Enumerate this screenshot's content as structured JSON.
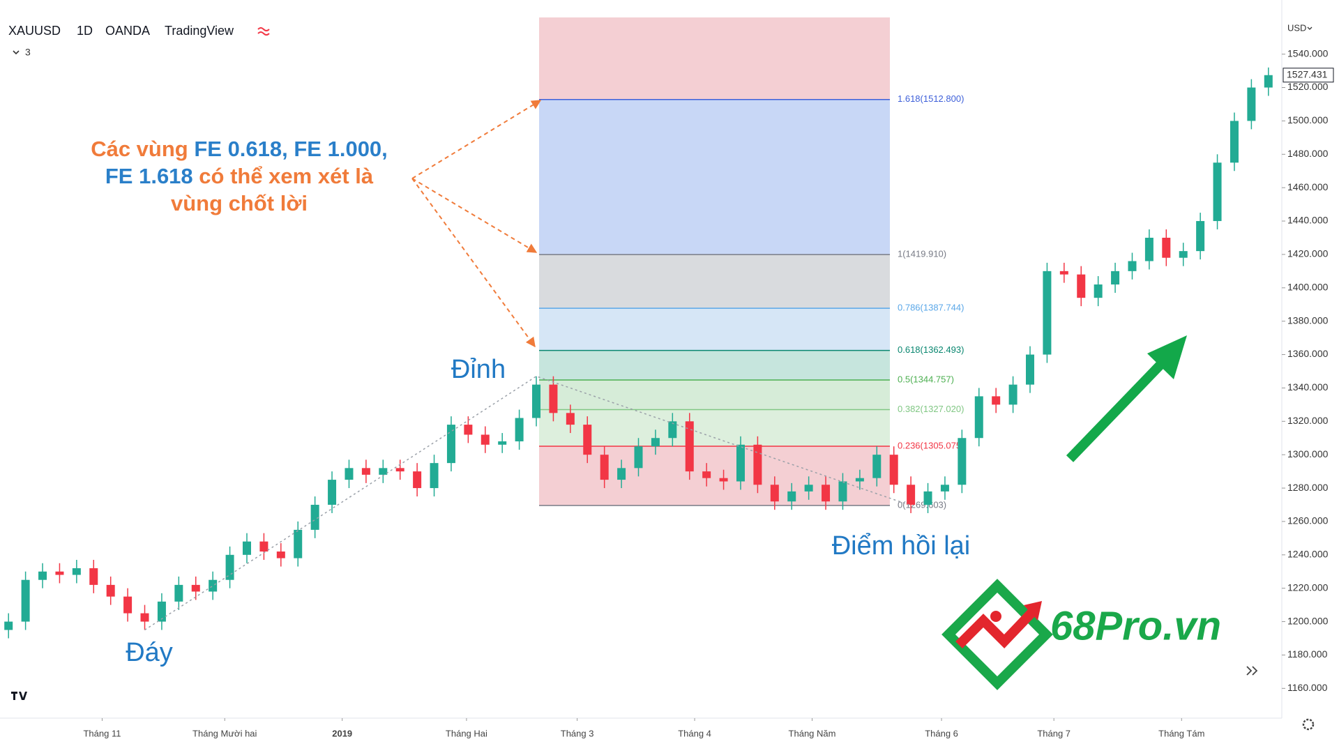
{
  "header": {
    "symbol": "XAUUSD",
    "interval": "1D",
    "exchange": "OANDA",
    "source": "TradingView",
    "indicator_count": "3"
  },
  "chart_data": {
    "type": "candlestick",
    "currency": "USD",
    "open": [
      1195,
      1200,
      1225,
      1230,
      1228,
      1232,
      1222,
      1215,
      1205,
      1200,
      1212,
      1222,
      1218,
      1225,
      1240,
      1248,
      1242,
      1238,
      1255,
      1270,
      1285,
      1292,
      1288,
      1292,
      1290,
      1280,
      1295,
      1318,
      1312,
      1306,
      1308,
      1322,
      1342,
      1325,
      1318,
      1300,
      1285,
      1292,
      1305,
      1310,
      1320,
      1290,
      1286,
      1284,
      1306,
      1282,
      1272,
      1278,
      1282,
      1272,
      1284,
      1286,
      1300,
      1282,
      1270,
      1278,
      1282,
      1310,
      1335,
      1330,
      1342,
      1360,
      1410,
      1408,
      1394,
      1402,
      1410,
      1416,
      1430,
      1418,
      1422,
      1440,
      1475,
      1500,
      1520
    ],
    "high": [
      1205,
      1230,
      1235,
      1235,
      1237,
      1237,
      1227,
      1220,
      1210,
      1217,
      1227,
      1227,
      1230,
      1245,
      1253,
      1253,
      1247,
      1260,
      1275,
      1290,
      1297,
      1297,
      1297,
      1297,
      1295,
      1300,
      1323,
      1323,
      1317,
      1313,
      1327,
      1347,
      1347,
      1330,
      1323,
      1305,
      1297,
      1310,
      1315,
      1325,
      1325,
      1295,
      1291,
      1311,
      1311,
      1287,
      1283,
      1287,
      1287,
      1289,
      1291,
      1305,
      1305,
      1287,
      1283,
      1287,
      1315,
      1340,
      1340,
      1347,
      1365,
      1415,
      1415,
      1413,
      1407,
      1415,
      1421,
      1435,
      1435,
      1427,
      1445,
      1480,
      1505,
      1525,
      1532
    ],
    "low": [
      1190,
      1195,
      1220,
      1223,
      1223,
      1217,
      1210,
      1200,
      1195,
      1195,
      1207,
      1213,
      1213,
      1220,
      1235,
      1237,
      1233,
      1233,
      1250,
      1265,
      1280,
      1283,
      1283,
      1285,
      1275,
      1275,
      1290,
      1307,
      1301,
      1301,
      1303,
      1317,
      1320,
      1313,
      1295,
      1280,
      1280,
      1287,
      1300,
      1305,
      1285,
      1281,
      1279,
      1279,
      1277,
      1267,
      1267,
      1273,
      1267,
      1267,
      1279,
      1281,
      1277,
      1265,
      1265,
      1273,
      1277,
      1305,
      1325,
      1325,
      1337,
      1355,
      1403,
      1389,
      1389,
      1397,
      1405,
      1411,
      1413,
      1413,
      1417,
      1435,
      1470,
      1495,
      1515
    ],
    "close": [
      1200,
      1225,
      1230,
      1228,
      1232,
      1222,
      1215,
      1205,
      1200,
      1212,
      1222,
      1218,
      1225,
      1240,
      1248,
      1242,
      1238,
      1255,
      1270,
      1285,
      1292,
      1288,
      1292,
      1290,
      1280,
      1295,
      1318,
      1312,
      1306,
      1308,
      1322,
      1342,
      1325,
      1318,
      1300,
      1285,
      1292,
      1305,
      1310,
      1320,
      1290,
      1286,
      1284,
      1306,
      1282,
      1272,
      1278,
      1282,
      1272,
      1284,
      1286,
      1300,
      1282,
      1270,
      1278,
      1282,
      1310,
      1335,
      1330,
      1342,
      1360,
      1410,
      1408,
      1394,
      1402,
      1410,
      1416,
      1430,
      1418,
      1422,
      1440,
      1475,
      1500,
      1520,
      1527.431
    ],
    "up_color": "#22ab94",
    "down_color": "#f23645",
    "last_price": 1527.431,
    "xlim": [
      -0.5,
      74.5
    ],
    "xticks": [
      {
        "value": 5.5,
        "label": "Tháng 11"
      },
      {
        "value": 12.7,
        "label": "Tháng Mười hai"
      },
      {
        "value": 19.6,
        "label": "2019",
        "bold": true
      },
      {
        "value": 26.9,
        "label": "Tháng Hai"
      },
      {
        "value": 33.4,
        "label": "Tháng 3"
      },
      {
        "value": 40.3,
        "label": "Tháng 4"
      },
      {
        "value": 47.2,
        "label": "Tháng Năm"
      },
      {
        "value": 54.8,
        "label": "Tháng 6"
      },
      {
        "value": 61.4,
        "label": "Tháng 7"
      },
      {
        "value": 68.9,
        "label": "Tháng Tám"
      }
    ],
    "ylim": [
      1143,
      1562
    ],
    "yticks": [
      {
        "value": 1160,
        "label": "1160.000"
      },
      {
        "value": 1180,
        "label": "1180.000"
      },
      {
        "value": 1200,
        "label": "1200.000"
      },
      {
        "value": 1220,
        "label": "1220.000"
      },
      {
        "value": 1240,
        "label": "1240.000"
      },
      {
        "value": 1260,
        "label": "1260.000"
      },
      {
        "value": 1280,
        "label": "1280.000"
      },
      {
        "value": 1300,
        "label": "1300.000"
      },
      {
        "value": 1320,
        "label": "1320.000"
      },
      {
        "value": 1340,
        "label": "1340.000"
      },
      {
        "value": 1360,
        "label": "1360.000"
      },
      {
        "value": 1380,
        "label": "1380.000"
      },
      {
        "value": 1400,
        "label": "1400.000"
      },
      {
        "value": 1420,
        "label": "1420.000"
      },
      {
        "value": 1440,
        "label": "1440.000"
      },
      {
        "value": 1460,
        "label": "1460.000"
      },
      {
        "value": 1480,
        "label": "1480.000"
      },
      {
        "value": 1500,
        "label": "1500.000"
      },
      {
        "value": 1520,
        "label": "1520.000"
      },
      {
        "value": 1540,
        "label": "1540.000"
      }
    ],
    "fib_fill_above": "#f4cfd3",
    "fib_levels": [
      {
        "value": 1512.8,
        "label": "1.618(1512.800)",
        "color": "#3d5fd9",
        "fill": "#c8d7f6"
      },
      {
        "value": 1419.91,
        "label": "1(1419.910)",
        "color": "#787b86",
        "fill": "#d9dbde"
      },
      {
        "value": 1387.744,
        "label": "0.786(1387.744)",
        "color": "#5aa7e8",
        "fill": "#d6e6f6"
      },
      {
        "value": 1362.493,
        "label": "0.618(1362.493)",
        "color": "#08866f",
        "fill": "#c6e5dd"
      },
      {
        "value": 1344.757,
        "label": "0.5(1344.757)",
        "color": "#4caf50",
        "fill": "#d6ecd8"
      },
      {
        "value": 1327.02,
        "label": "0.382(1327.020)",
        "color": "#81c784",
        "fill": "#ddefdd"
      },
      {
        "value": 1305.075,
        "label": "0.236(1305.075)",
        "color": "#f23645",
        "fill": "#f4cfd3"
      },
      {
        "value": 1269.603,
        "label": "0(1269.603)",
        "color": "#787b86"
      }
    ],
    "annotations": {
      "note": [
        [
          {
            "text": "Các vùng ",
            "color": "#f07b3a"
          },
          {
            "text": "FE 0.618, FE 1.000,",
            "color": "#2a7fc9"
          }
        ],
        [
          {
            "text": "FE 1.618",
            "color": "#2a7fc9"
          },
          {
            "text": " có thể xem xét là",
            "color": "#f07b3a"
          }
        ],
        [
          {
            "text": "vùng chốt lời",
            "color": "#f07b3a"
          }
        ]
      ],
      "top": "Đỉnh",
      "bottom": "Đáy",
      "retrace": "Điểm hồi lại"
    }
  },
  "logo": {
    "text": "68Pro.vn"
  }
}
